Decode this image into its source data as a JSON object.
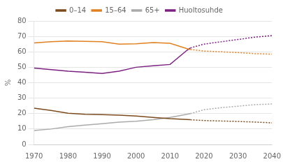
{
  "chart_data": {
    "type": "line",
    "ylabel": "%",
    "xlim": [
      1970,
      2040
    ],
    "xticks": [
      1970,
      1980,
      1990,
      2000,
      2010,
      2020,
      2030,
      2040
    ],
    "ylim": [
      0,
      80
    ],
    "yticks": [
      0,
      10,
      20,
      30,
      40,
      50,
      60,
      70,
      80
    ],
    "grid": "y",
    "legend": "top",
    "series": [
      {
        "name": "0–14",
        "color": "#7B4A1E",
        "line_style": "solid",
        "x": [
          1970,
          1975,
          1980,
          1985,
          1990,
          1995,
          2000,
          2005,
          2010,
          2015,
          2016
        ],
        "values": [
          23.5,
          22.0,
          20.2,
          19.5,
          19.3,
          19.0,
          18.4,
          17.5,
          16.7,
          16.2,
          16.0
        ]
      },
      {
        "name": "15–64",
        "color": "#E08020",
        "line_style": "solid",
        "x": [
          1970,
          1975,
          1980,
          1985,
          1990,
          1995,
          2000,
          2005,
          2010,
          2015,
          2016
        ],
        "values": [
          65.8,
          66.5,
          67.0,
          66.8,
          66.5,
          65.0,
          65.2,
          66.0,
          65.5,
          62.0,
          61.5
        ]
      },
      {
        "name": "65+",
        "color": "#AAAAAA",
        "line_style": "solid",
        "x": [
          1970,
          1975,
          1980,
          1985,
          1990,
          1995,
          2000,
          2005,
          2010,
          2015,
          2016
        ],
        "values": [
          9.0,
          10.0,
          11.5,
          12.5,
          13.5,
          14.5,
          15.0,
          16.0,
          17.5,
          19.5,
          20.0
        ]
      },
      {
        "name": "Huoltosuhde",
        "color": "#7B2080",
        "line_style": "solid",
        "x": [
          1970,
          1975,
          1980,
          1985,
          1990,
          1995,
          2000,
          2005,
          2010,
          2015,
          2016
        ],
        "values": [
          49.5,
          48.5,
          47.5,
          46.8,
          46.0,
          47.5,
          50.0,
          51.0,
          51.8,
          61.0,
          62.5
        ]
      },
      {
        "color": "#7B4A1E",
        "line_style": "dotted",
        "x": [
          2016,
          2020,
          2025,
          2030,
          2035,
          2040
        ],
        "values": [
          16.0,
          15.5,
          15.2,
          14.9,
          14.5,
          14.0
        ]
      },
      {
        "color": "#E08020",
        "line_style": "dotted",
        "x": [
          2016,
          2020,
          2025,
          2030,
          2035,
          2040
        ],
        "values": [
          61.5,
          60.5,
          60.0,
          59.5,
          58.8,
          58.5
        ]
      },
      {
        "color": "#AAAAAA",
        "line_style": "dotted",
        "x": [
          2016,
          2020,
          2025,
          2030,
          2035,
          2040
        ],
        "values": [
          20.0,
          22.5,
          23.8,
          24.8,
          25.8,
          26.2
        ]
      },
      {
        "color": "#7B2080",
        "line_style": "dotted",
        "x": [
          2016,
          2020,
          2025,
          2030,
          2035,
          2040
        ],
        "values": [
          62.5,
          65.0,
          66.5,
          68.0,
          69.5,
          70.5
        ]
      }
    ]
  }
}
